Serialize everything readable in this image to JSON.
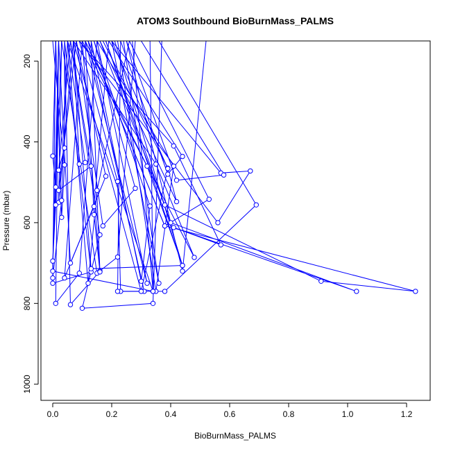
{
  "chart_data": {
    "type": "line",
    "title": "ATOM3 Southbound BioBurnMass_PALMS",
    "xlabel": "BioBurnMass_PALMS",
    "ylabel": "Pressure (mbar)",
    "xlim": [
      -0.04,
      1.28
    ],
    "ylim": [
      1040,
      150
    ],
    "y_reversed": true,
    "x_ticks": [
      "0.0",
      "0.2",
      "0.4",
      "0.6",
      "0.8",
      "1.0",
      "1.2"
    ],
    "x_tick_values": [
      0,
      0.2,
      0.4,
      0.6,
      0.8,
      1.0,
      1.2
    ],
    "y_ticks": [
      "200",
      "400",
      "600",
      "800",
      "1000"
    ],
    "y_tick_values": [
      200,
      400,
      600,
      800,
      1000
    ],
    "series_color": "#0000FF",
    "marker": "open-circle",
    "series": [
      {
        "points": [
          [
            0.09,
            150
          ],
          [
            0.22,
            498
          ],
          [
            0.23,
            770
          ],
          [
            0.31,
            770
          ],
          [
            0.12,
            150
          ]
        ]
      },
      {
        "points": [
          [
            0.14,
            150
          ],
          [
            0.33,
            559
          ],
          [
            0.3,
            745
          ],
          [
            0.13,
            150
          ]
        ]
      },
      {
        "points": [
          [
            0.16,
            150
          ],
          [
            0.42,
            548
          ],
          [
            0.39,
            465
          ],
          [
            0.17,
            150
          ]
        ]
      },
      {
        "points": [
          [
            0.2,
            150
          ],
          [
            0.57,
            477
          ],
          [
            0.67,
            472
          ],
          [
            0.56,
            600
          ],
          [
            0.09,
            150
          ]
        ]
      },
      {
        "points": [
          [
            0.23,
            150
          ],
          [
            0.39,
            480
          ],
          [
            0.44,
            436
          ],
          [
            0.19,
            150
          ]
        ]
      },
      {
        "points": [
          [
            0.26,
            150
          ],
          [
            0.53,
            542
          ],
          [
            0.38,
            608
          ],
          [
            0.12,
            150
          ]
        ]
      },
      {
        "points": [
          [
            0.1,
            150
          ],
          [
            0.48,
            686
          ],
          [
            0.35,
            455
          ],
          [
            0.07,
            150
          ]
        ]
      },
      {
        "points": [
          [
            0.3,
            150
          ],
          [
            0.58,
            482
          ],
          [
            0.42,
            495
          ],
          [
            0.25,
            150
          ]
        ]
      },
      {
        "points": [
          [
            0.22,
            150
          ],
          [
            0.35,
            770
          ],
          [
            0.41,
            460
          ],
          [
            0.15,
            150
          ]
        ]
      },
      {
        "points": [
          [
            0.23,
            150
          ],
          [
            0.22,
            770
          ],
          [
            0.38,
            770
          ],
          [
            0.69,
            556
          ],
          [
            0.36,
            150
          ]
        ]
      },
      {
        "points": [
          [
            0.05,
            150
          ],
          [
            0.12,
            750
          ],
          [
            0.15,
            520
          ],
          [
            0.26,
            150
          ]
        ]
      },
      {
        "points": [
          [
            0.18,
            150
          ],
          [
            0.44,
            706
          ],
          [
            0.32,
            460
          ],
          [
            0.11,
            150
          ]
        ]
      },
      {
        "points": [
          [
            0.03,
            150
          ],
          [
            0.15,
            725
          ],
          [
            0.22,
            685
          ],
          [
            0.28,
            150
          ]
        ]
      },
      {
        "points": [
          [
            0.2,
            150
          ],
          [
            0.39,
            466
          ],
          [
            0.3,
            770
          ],
          [
            0.07,
            150
          ]
        ]
      },
      {
        "points": [
          [
            0.14,
            150
          ],
          [
            0.28,
            515
          ],
          [
            0.17,
            608
          ],
          [
            0.08,
            150
          ]
        ]
      },
      {
        "points": [
          [
            0.02,
            150
          ],
          [
            0.06,
            700
          ],
          [
            0.14,
            560
          ],
          [
            0.19,
            150
          ]
        ]
      },
      {
        "points": [
          [
            0.12,
            150
          ],
          [
            0.38,
            608
          ],
          [
            1.23,
            770
          ],
          [
            0.91,
            745
          ],
          [
            0.38,
            556
          ],
          [
            0.16,
            150
          ]
        ]
      },
      {
        "points": [
          [
            0.09,
            150
          ],
          [
            0.41,
            410
          ],
          [
            0.57,
            655
          ],
          [
            0.41,
            612
          ],
          [
            1.03,
            770
          ],
          [
            0.4,
            600
          ],
          [
            0.18,
            150
          ]
        ]
      },
      {
        "points": [
          [
            0.01,
            150
          ],
          [
            0.0,
            750
          ],
          [
            0.13,
            722
          ],
          [
            0.04,
            150
          ]
        ]
      },
      {
        "points": [
          [
            0.02,
            150
          ],
          [
            0.0,
            720
          ],
          [
            0.34,
            770
          ],
          [
            0.05,
            150
          ]
        ]
      },
      {
        "points": [
          [
            0.03,
            150
          ],
          [
            0.02,
            550
          ],
          [
            0.07,
            150
          ]
        ]
      },
      {
        "points": [
          [
            0.04,
            150
          ],
          [
            0.04,
            415
          ],
          [
            0.02,
            470
          ],
          [
            0.06,
            150
          ]
        ]
      },
      {
        "points": [
          [
            0.05,
            150
          ],
          [
            0.11,
            451
          ],
          [
            0.09,
            455
          ],
          [
            0.07,
            150
          ]
        ]
      },
      {
        "points": [
          [
            0.06,
            150
          ],
          [
            0.13,
            460
          ],
          [
            0.02,
            520
          ],
          [
            0.08,
            150
          ]
        ]
      },
      {
        "points": [
          [
            0.0,
            150
          ],
          [
            0.04,
            457
          ],
          [
            0.03,
            587
          ],
          [
            0.01,
            150
          ]
        ]
      },
      {
        "points": [
          [
            0.01,
            150
          ],
          [
            0.0,
            435
          ],
          [
            0.01,
            512
          ],
          [
            0.02,
            150
          ]
        ]
      },
      {
        "points": [
          [
            0.08,
            150
          ],
          [
            0.18,
            485
          ],
          [
            0.04,
            737
          ],
          [
            0.1,
            150
          ]
        ]
      },
      {
        "points": [
          [
            0.06,
            150
          ],
          [
            0.16,
            630
          ],
          [
            0.1,
            812
          ],
          [
            0.34,
            800
          ],
          [
            0.37,
            150
          ]
        ]
      },
      {
        "points": [
          [
            0.02,
            150
          ],
          [
            0.01,
            800
          ],
          [
            0.09,
            725
          ],
          [
            0.15,
            150
          ]
        ]
      },
      {
        "points": [
          [
            0.04,
            150
          ],
          [
            0.06,
            803
          ],
          [
            0.16,
            720
          ],
          [
            0.13,
            150
          ]
        ]
      },
      {
        "points": [
          [
            0.11,
            150
          ],
          [
            0.14,
            580
          ],
          [
            0.16,
            722
          ],
          [
            0.1,
            150
          ]
        ]
      },
      {
        "points": [
          [
            0.07,
            150
          ],
          [
            0.13,
            714
          ],
          [
            0.44,
            706
          ],
          [
            0.21,
            150
          ]
        ]
      },
      {
        "points": [
          [
            0.03,
            150
          ],
          [
            0.0,
            695
          ],
          [
            0.01,
            556
          ],
          [
            0.02,
            150
          ]
        ]
      },
      {
        "points": [
          [
            0.01,
            150
          ],
          [
            0.0,
            737
          ],
          [
            0.03,
            545
          ],
          [
            0.05,
            150
          ]
        ]
      },
      {
        "points": [
          [
            0.15,
            150
          ],
          [
            0.32,
            750
          ],
          [
            0.11,
            150
          ]
        ]
      },
      {
        "points": [
          [
            0.25,
            150
          ],
          [
            0.44,
            720
          ],
          [
            0.52,
            150
          ]
        ]
      },
      {
        "points": [
          [
            0.24,
            150
          ],
          [
            0.36,
            750
          ],
          [
            0.2,
            150
          ]
        ]
      },
      {
        "points": [
          [
            0.33,
            150
          ],
          [
            0.34,
            770
          ],
          [
            0.27,
            150
          ]
        ]
      }
    ]
  }
}
